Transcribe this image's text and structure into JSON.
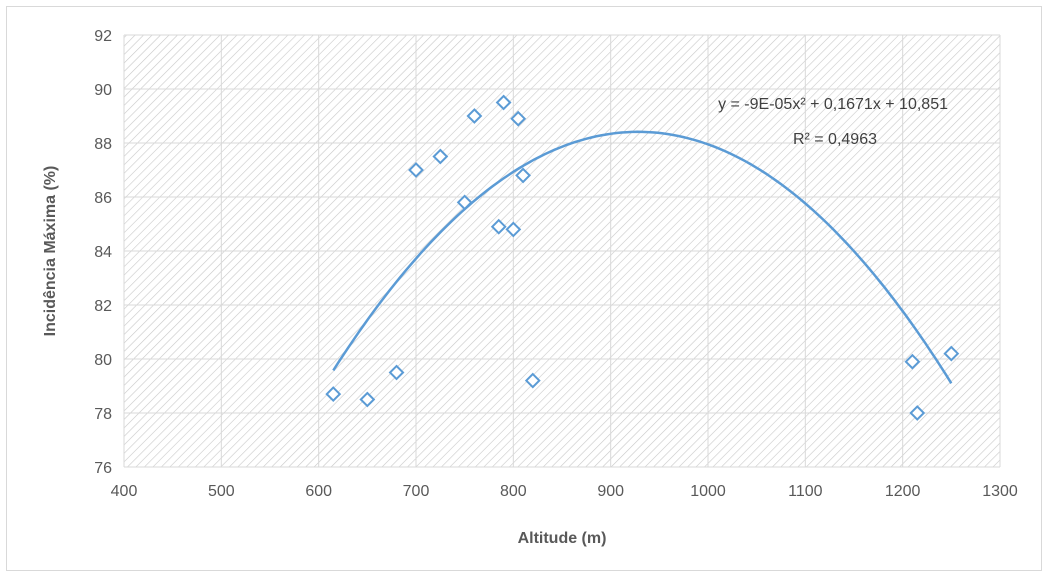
{
  "chart_data": {
    "type": "scatter",
    "title": "",
    "xlabel": "Altitude (m)",
    "ylabel": "Incidência Máxima (%)",
    "xlim": [
      400,
      1300
    ],
    "ylim": [
      76,
      92
    ],
    "x_ticks": [
      400,
      500,
      600,
      700,
      800,
      900,
      1000,
      1100,
      1200,
      1300
    ],
    "y_ticks": [
      76,
      78,
      80,
      82,
      84,
      86,
      88,
      90,
      92
    ],
    "grid": true,
    "legend": "none",
    "marker": "diamond-open",
    "colors": {
      "series": "#5b9bd5",
      "grid": "#d9d9d9",
      "hatch": "#c8c8c8"
    },
    "series": [
      {
        "x": [
          615,
          650,
          680,
          700,
          725,
          750,
          760,
          785,
          790,
          800,
          805,
          810,
          820,
          1210,
          1215,
          1250
        ],
        "y": [
          78.7,
          78.5,
          79.5,
          87.0,
          87.5,
          85.8,
          89.0,
          84.9,
          89.5,
          84.8,
          88.9,
          86.8,
          79.2,
          79.9,
          78.0,
          80.2
        ]
      }
    ],
    "trendline": {
      "type": "polynomial",
      "order": 2,
      "coefficients": [
        -9e-05,
        0.1671,
        10.851
      ],
      "x_range": [
        615,
        1250
      ],
      "equation_label": "y = -9E-05x² + 0,1671x + 10,851",
      "r2_label": "R² = 0,4963"
    }
  }
}
